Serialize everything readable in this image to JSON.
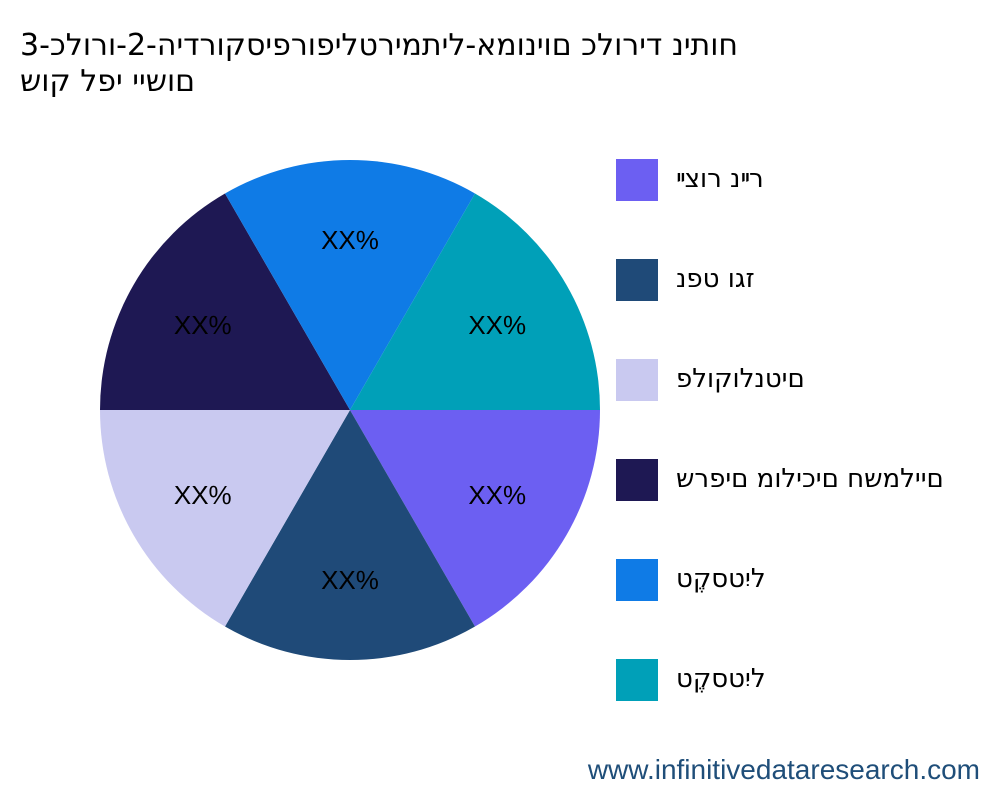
{
  "title_lines": [
    "חותינ דירולכ םוינומא-ליתמירטליפורפיסקורדיה-2-ורולכ-3",
    "םושיי יפל קוש"
  ],
  "footer": "www.infinitivedataresearch.com",
  "chart_data": {
    "type": "pie",
    "title": "חותינ דירולכ םוינומא-ליתמירטליפורפיסקורדיה-2-ורולכ-3 םושיי יפל קוש",
    "categories": [
      "רײנ רוצײ",
      "זגו טפנ",
      "םיטנלוקולפ",
      "םיילמשח םיכילומ םיפרש",
      "ליִטסקֶט",
      "ליִטסקֶט"
    ],
    "values": [
      16.67,
      16.67,
      16.67,
      16.67,
      16.67,
      16.67
    ],
    "slice_labels": [
      "XX%",
      "XX%",
      "XX%",
      "XX%",
      "XX%",
      "XX%"
    ],
    "colors": [
      "#6c5ff2",
      "#1f4a78",
      "#c9c9f0",
      "#1e1853",
      "#0f7be6",
      "#00a0b8"
    ],
    "start": "3 o'clock",
    "direction": "clockwise",
    "legend_position": "right"
  }
}
